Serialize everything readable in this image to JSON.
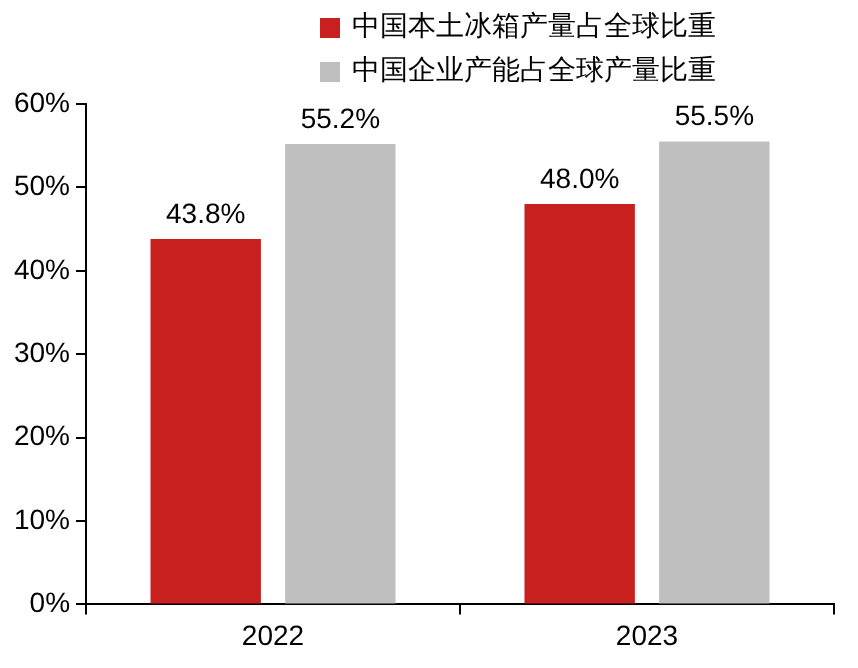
{
  "chart_data": {
    "type": "bar",
    "categories": [
      "2022",
      "2023"
    ],
    "series": [
      {
        "name": "中国本土冰箱产量占全球比重",
        "color": "#c8201f",
        "values": [
          43.8,
          48.0
        ],
        "value_labels": [
          "43.8%",
          "48.0%"
        ]
      },
      {
        "name": "中国企业产能占全球产量比重",
        "color": "#bfbfbf",
        "values": [
          55.2,
          55.5
        ],
        "value_labels": [
          "55.2%",
          "55.5%"
        ]
      }
    ],
    "ylim": [
      0,
      60
    ],
    "yticks": [
      {
        "value": 0,
        "label": "0%"
      },
      {
        "value": 10,
        "label": "10%"
      },
      {
        "value": 20,
        "label": "20%"
      },
      {
        "value": 30,
        "label": "30%"
      },
      {
        "value": 40,
        "label": "40%"
      },
      {
        "value": 50,
        "label": "50%"
      },
      {
        "value": 60,
        "label": "60%"
      }
    ],
    "grid": false,
    "legend": "top"
  }
}
